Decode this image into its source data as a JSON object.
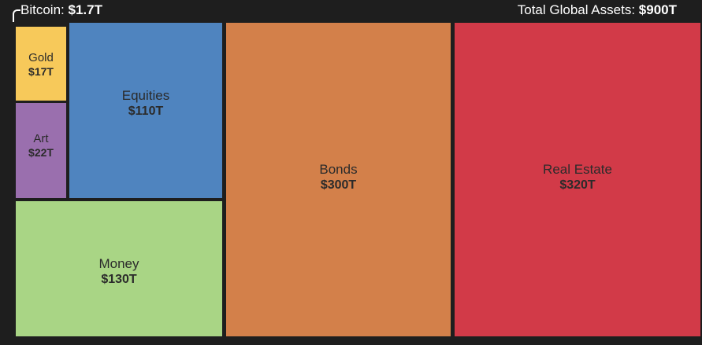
{
  "header": {
    "bitcoin_label": "Bitcoin:",
    "bitcoin_value": "$1.7T",
    "total_label": "Total Global Assets:",
    "total_value": "$900T"
  },
  "chart_data": {
    "type": "treemap",
    "total": {
      "label": "Total Global Assets",
      "value": 900,
      "display": "$900T"
    },
    "items": [
      {
        "name": "Bitcoin",
        "value": 1.7,
        "display": "$1.7T",
        "color": ""
      },
      {
        "name": "Gold",
        "value": 17,
        "display": "$17T",
        "color": "#f7c95a"
      },
      {
        "name": "Art",
        "value": 22,
        "display": "$22T",
        "color": "#9a6fae"
      },
      {
        "name": "Equities",
        "value": 110,
        "display": "$110T",
        "color": "#4f84bf"
      },
      {
        "name": "Money",
        "value": 130,
        "display": "$130T",
        "color": "#a9d585"
      },
      {
        "name": "Bonds",
        "value": 300,
        "display": "$300T",
        "color": "#d3804a"
      },
      {
        "name": "Real Estate",
        "value": 320,
        "display": "$320T",
        "color": "#d23a48"
      }
    ]
  }
}
